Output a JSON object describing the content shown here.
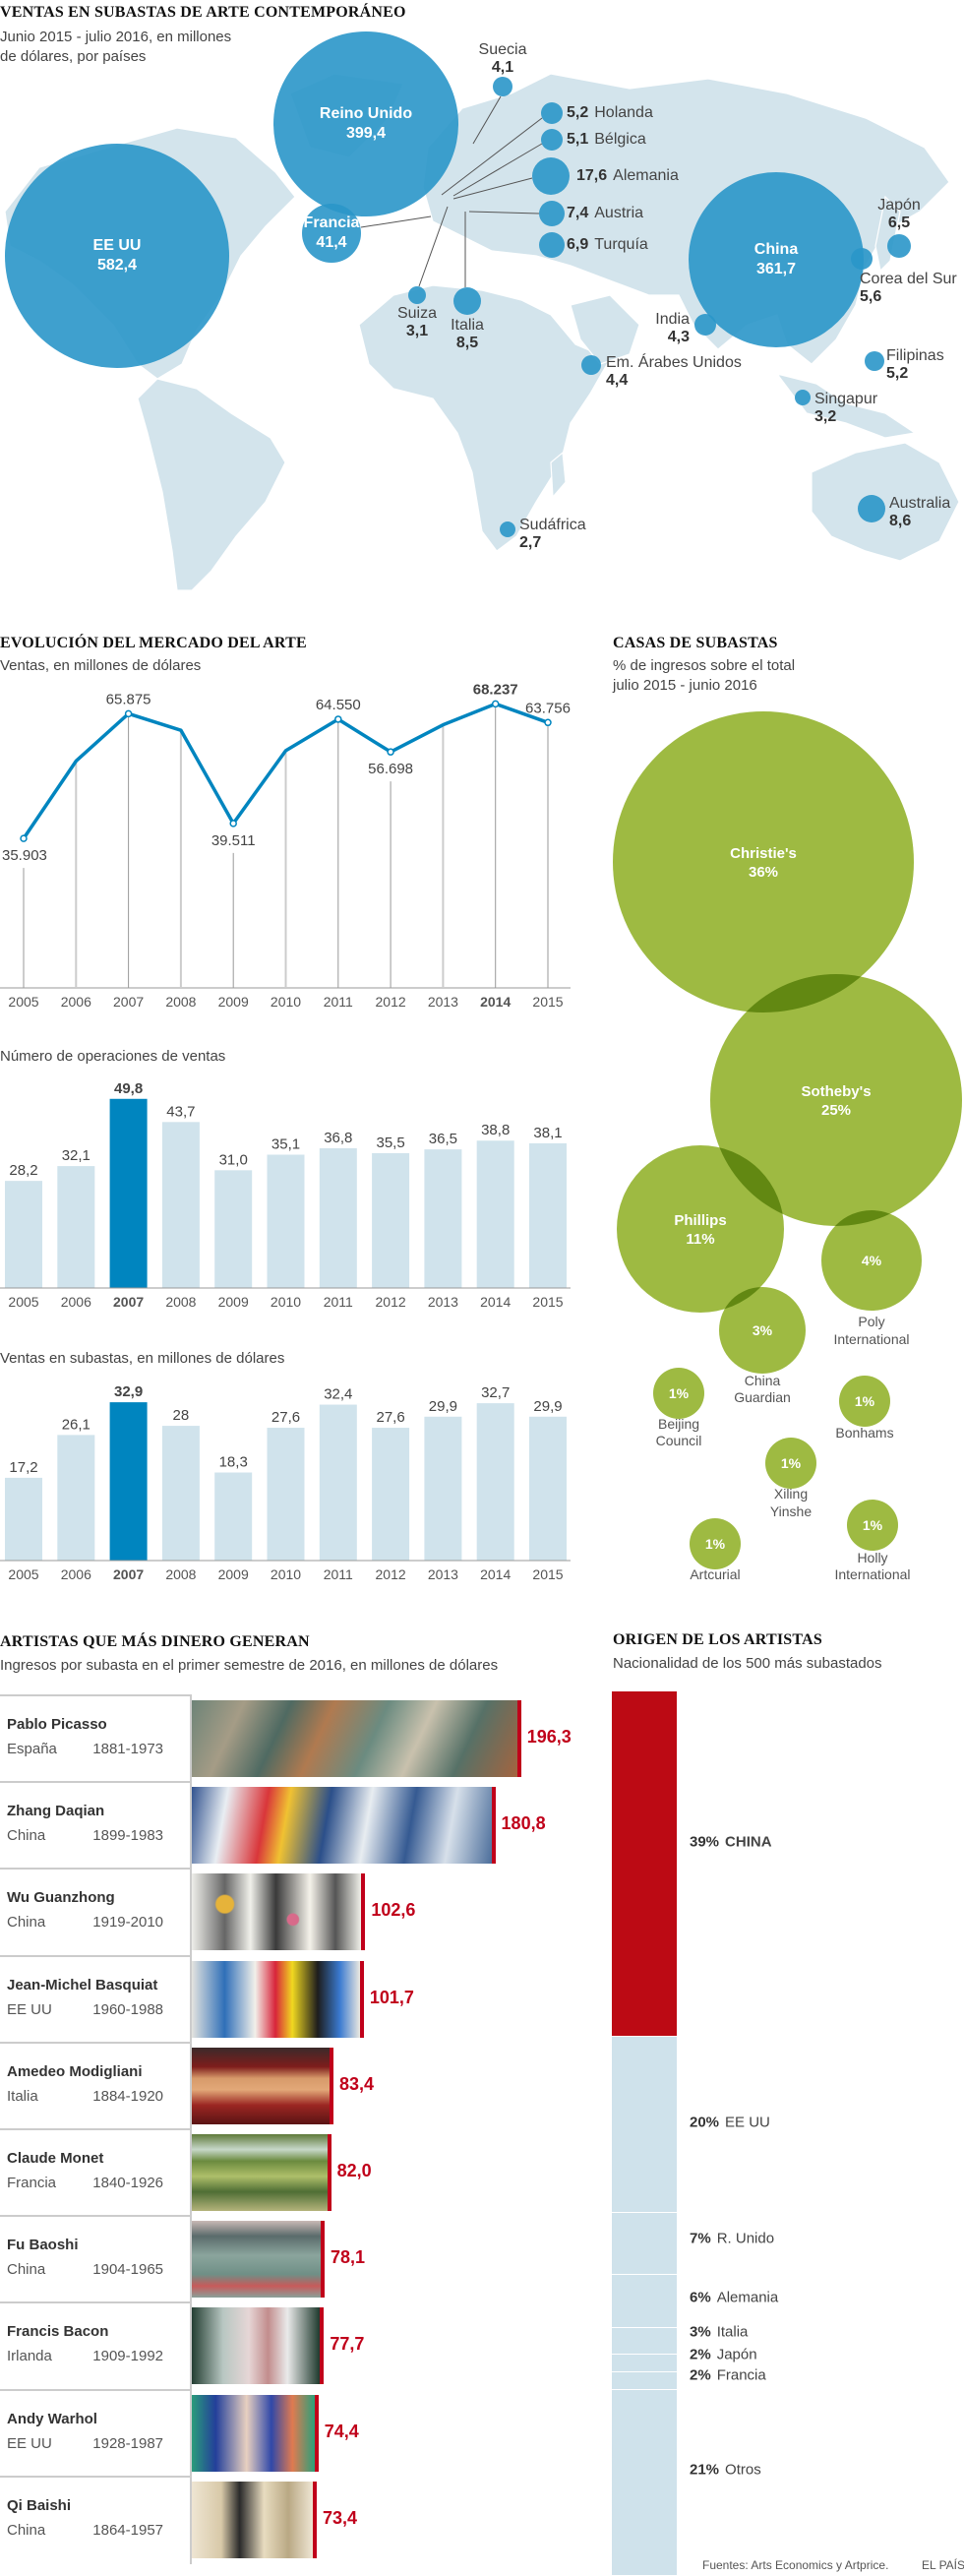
{
  "map": {
    "title": "VENTAS EN SUBASTAS DE ARTE CONTEMPORÁNEO",
    "subtitle_1": "Junio 2015 - julio 2016, en millones",
    "subtitle_2": "de dólares, por países",
    "bubble_color": "#2a96c9",
    "land_color": "#d3e4ec",
    "countries": [
      {
        "name": "EE UU",
        "value": "582,4"
      },
      {
        "name": "Reino Unido",
        "value": "399,4"
      },
      {
        "name": "China",
        "value": "361,7"
      },
      {
        "name": "Francia",
        "value": "41,4"
      },
      {
        "name": "Alemania",
        "value": "17,6"
      },
      {
        "name": "Australia",
        "value": "8,6"
      },
      {
        "name": "Italia",
        "value": "8,5"
      },
      {
        "name": "Austria",
        "value": "7,4"
      },
      {
        "name": "Turquía",
        "value": "6,9"
      },
      {
        "name": "Japón",
        "value": "6,5"
      },
      {
        "name": "Corea del Sur",
        "value": "5,6"
      },
      {
        "name": "Holanda",
        "value": "5,2"
      },
      {
        "name": "Filipinas",
        "value": "5,2"
      },
      {
        "name": "Bélgica",
        "value": "5,1"
      },
      {
        "name": "Em. Árabes Unidos",
        "value": "4,4"
      },
      {
        "name": "India",
        "value": "4,3"
      },
      {
        "name": "Suecia",
        "value": "4,1"
      },
      {
        "name": "Singapur",
        "value": "3,2"
      },
      {
        "name": "Suiza",
        "value": "3,1"
      },
      {
        "name": "Sudáfrica",
        "value": "2,7"
      }
    ]
  },
  "chart_data": [
    {
      "type": "line",
      "title": "EVOLUCIÓN DEL MERCADO DEL ARTE",
      "subtitle": "Ventas, en millones de dólares",
      "categories": [
        "2005",
        "2006",
        "2007",
        "2008",
        "2009",
        "2010",
        "2011",
        "2012",
        "2013",
        "2014",
        "2015"
      ],
      "values": [
        35903,
        54500,
        65875,
        61900,
        39511,
        57000,
        64550,
        56698,
        63200,
        68237,
        63756
      ],
      "labels": [
        "35.903",
        "",
        "65.875",
        "",
        "39.511",
        "",
        "64.550",
        "56.698",
        "",
        "68.237",
        "63.756"
      ],
      "highlight": "2014",
      "ylim": [
        0,
        70000
      ],
      "color": "#0085bf",
      "grid": false
    },
    {
      "type": "bar",
      "title": "Número de operaciones de ventas",
      "categories": [
        "2005",
        "2006",
        "2007",
        "2008",
        "2009",
        "2010",
        "2011",
        "2012",
        "2013",
        "2014",
        "2015"
      ],
      "values": [
        28.2,
        32.1,
        49.8,
        43.7,
        31.0,
        35.1,
        36.8,
        35.5,
        36.5,
        38.8,
        38.1
      ],
      "labels": [
        "28,2",
        "32,1",
        "49,8",
        "43,7",
        "31,0",
        "35,1",
        "36,8",
        "35,5",
        "36,5",
        "38,8",
        "38,1"
      ],
      "highlight": "2007",
      "color": "#d0e3ec",
      "highlight_color": "#0085bf"
    },
    {
      "type": "bar",
      "title": "Ventas en subastas, en millones de dólares",
      "categories": [
        "2005",
        "2006",
        "2007",
        "2008",
        "2009",
        "2010",
        "2011",
        "2012",
        "2013",
        "2014",
        "2015"
      ],
      "values": [
        17.2,
        26.1,
        32.9,
        28,
        18.3,
        27.6,
        32.4,
        27.6,
        29.9,
        32.7,
        29.9
      ],
      "labels": [
        "17,2",
        "26,1",
        "32,9",
        "28",
        "18,3",
        "27,6",
        "32,4",
        "27,6",
        "29,9",
        "32,7",
        "29,9"
      ],
      "highlight": "2007",
      "color": "#d0e3ec",
      "highlight_color": "#0085bf"
    },
    {
      "type": "bubble",
      "title": "CASAS DE SUBASTAS",
      "subtitle_1": "% de ingresos sobre el total",
      "subtitle_2": "julio 2015 - junio 2016",
      "color": "#9eba42",
      "houses": [
        {
          "name": "Christie's",
          "value": "36%",
          "label_inside": true
        },
        {
          "name": "Sotheby's",
          "value": "25%",
          "label_inside": true
        },
        {
          "name": "Phillips",
          "value": "11%",
          "label_inside": true
        },
        {
          "name_1": "Poly",
          "name_2": "International",
          "value": "4%"
        },
        {
          "name_1": "China",
          "name_2": "Guardian",
          "value": "3%"
        },
        {
          "name_1": "Beijing",
          "name_2": "Council",
          "value": "1%"
        },
        {
          "name_1": "Bonhams",
          "name_2": "",
          "value": "1%"
        },
        {
          "name_1": "Xiling",
          "name_2": "Yinshe",
          "value": "1%"
        },
        {
          "name_1": "Holly",
          "name_2": "International",
          "value": "1%"
        },
        {
          "name_1": "Artcurial",
          "name_2": "",
          "value": "1%"
        }
      ]
    },
    {
      "type": "bar",
      "orientation": "horizontal",
      "title": "ARTISTAS QUE MÁS DINERO GENERAN",
      "subtitle": "Ingresos por subasta en el primer semestre de 2016, en millones de dólares",
      "value_color": "#c0001a",
      "artists": [
        {
          "name": "Pablo Picasso",
          "country": "España",
          "years": "1881-1973",
          "value": 196.3,
          "label": "196,3"
        },
        {
          "name": "Zhang Daqian",
          "country": "China",
          "years": "1899-1983",
          "value": 180.8,
          "label": "180,8"
        },
        {
          "name": "Wu Guanzhong",
          "country": "China",
          "years": "1919-2010",
          "value": 102.6,
          "label": "102,6"
        },
        {
          "name": "Jean-Michel Basquiat",
          "country": "EE UU",
          "years": "1960-1988",
          "value": 101.7,
          "label": "101,7"
        },
        {
          "name": "Amedeo Modigliani",
          "country": "Italia",
          "years": "1884-1920",
          "value": 83.4,
          "label": "83,4"
        },
        {
          "name": "Claude Monet",
          "country": "Francia",
          "years": "1840-1926",
          "value": 82.0,
          "label": "82,0"
        },
        {
          "name": "Fu Baoshi",
          "country": "China",
          "years": "1904-1965",
          "value": 78.1,
          "label": "78,1"
        },
        {
          "name": "Francis Bacon",
          "country": "Irlanda",
          "years": "1909-1992",
          "value": 77.7,
          "label": "77,7"
        },
        {
          "name": "Andy Warhol",
          "country": "EE UU",
          "years": "1928-1987",
          "value": 74.4,
          "label": "74,4"
        },
        {
          "name": "Qi Baishi",
          "country": "China",
          "years": "1864-1957",
          "value": 73.4,
          "label": "73,4"
        }
      ]
    },
    {
      "type": "stacked-bar",
      "title": "ORIGEN DE LOS ARTISTAS",
      "subtitle": "Nacionalidad de los 500 más subastados",
      "highlight_color": "#bc0a14",
      "color": "#cfe2eb",
      "segments": [
        {
          "pct": 39,
          "label": "39%",
          "name": "CHINA",
          "highlight": true
        },
        {
          "pct": 20,
          "label": "20%",
          "name": "EE UU"
        },
        {
          "pct": 7,
          "label": "7%",
          "name": "R. Unido"
        },
        {
          "pct": 6,
          "label": "6%",
          "name": "Alemania"
        },
        {
          "pct": 3,
          "label": "3%",
          "name": "Italia"
        },
        {
          "pct": 2,
          "label": "2%",
          "name": "Japón"
        },
        {
          "pct": 2,
          "label": "2%",
          "name": "Francia"
        },
        {
          "pct": 21,
          "label": "21%",
          "name": "Otros"
        }
      ]
    }
  ],
  "footer": {
    "sources": "Fuentes: Arts Economics y Artprice.",
    "brand": "EL PAÍS"
  }
}
